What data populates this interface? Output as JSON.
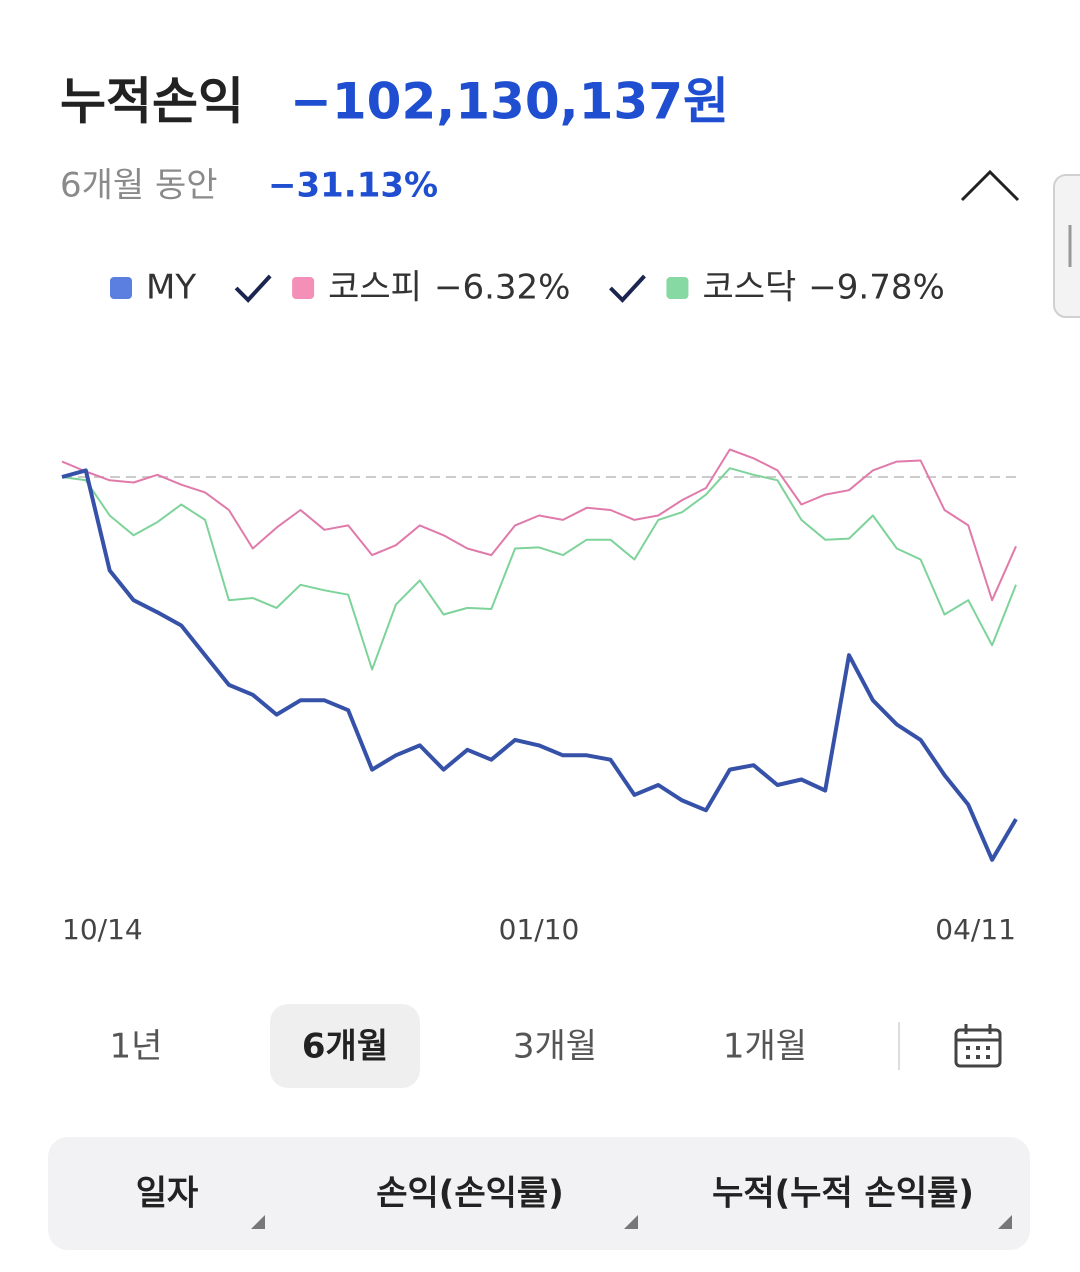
{
  "header": {
    "title": "누적손익",
    "amount": "−102,130,137원",
    "period": "6개월 동안",
    "rate": "−31.13%"
  },
  "chart_data": {
    "type": "line",
    "categories": [
      "10/14",
      null,
      null,
      null,
      null,
      null,
      null,
      null,
      null,
      null,
      null,
      null,
      null,
      null,
      null,
      null,
      null,
      null,
      null,
      null,
      "01/10",
      null,
      null,
      null,
      null,
      null,
      null,
      null,
      null,
      null,
      null,
      null,
      null,
      null,
      null,
      null,
      null,
      null,
      null,
      null,
      "04/11"
    ],
    "series": [
      {
        "name": "MY",
        "color": "#3651a8",
        "legend_color": "#5b7fe0",
        "values": [
          0,
          0.6,
          -8.5,
          -11.2,
          -12.3,
          -13.5,
          -16.2,
          -18.9,
          -19.8,
          -21.6,
          -20.3,
          -20.3,
          -21.2,
          -26.6,
          -25.3,
          -24.4,
          -26.6,
          -24.8,
          -25.7,
          -23.9,
          -24.4,
          -25.3,
          -25.3,
          -25.7,
          -28.9,
          -28.0,
          -29.4,
          -30.3,
          -26.6,
          -26.2,
          -28.0,
          -27.5,
          -28.5,
          -16.2,
          -20.3,
          -22.5,
          -23.9,
          -27.1,
          -29.8,
          -34.8,
          -31.1
        ]
      },
      {
        "name": "코스피",
        "change": "−6.32%",
        "color": "#e07aaa",
        "legend_color": "#f48fb8",
        "values": [
          1.4,
          0.5,
          -0.3,
          -0.5,
          0.2,
          -0.7,
          -1.4,
          -3.0,
          -6.5,
          -4.6,
          -3.0,
          -4.8,
          -4.4,
          -7.1,
          -6.2,
          -4.4,
          -5.3,
          -6.5,
          -7.1,
          -4.4,
          -3.5,
          -3.9,
          -2.8,
          -3.0,
          -3.9,
          -3.5,
          -2.1,
          -1.0,
          2.5,
          1.7,
          0.6,
          -2.5,
          -1.6,
          -1.2,
          0.6,
          1.4,
          1.5,
          -3.0,
          -4.4,
          -11.2,
          -6.3
        ]
      },
      {
        "name": "코스닥",
        "change": "−9.78%",
        "color": "#7dd39a",
        "legend_color": "#86d9a2",
        "values": [
          0,
          -0.3,
          -3.5,
          -5.3,
          -4.1,
          -2.5,
          -3.9,
          -11.2,
          -11.0,
          -11.9,
          -9.8,
          -10.3,
          -10.7,
          -17.5,
          -11.6,
          -9.4,
          -12.5,
          -11.9,
          -12.0,
          -6.5,
          -6.4,
          -7.1,
          -5.7,
          -5.7,
          -7.5,
          -3.9,
          -3.2,
          -1.6,
          0.8,
          0.2,
          -0.3,
          -3.9,
          -5.7,
          -5.6,
          -3.5,
          -6.5,
          -7.5,
          -12.5,
          -11.2,
          -15.3,
          -9.8
        ]
      }
    ],
    "ylim": [
      -38,
      7
    ],
    "reference_line": 0
  },
  "tabs": [
    "1년",
    "6개월",
    "3개월",
    "1개월"
  ],
  "selected_tab": 1,
  "table_header": [
    "일자",
    "손익(손익률)",
    "누적(누적 손익률)"
  ]
}
